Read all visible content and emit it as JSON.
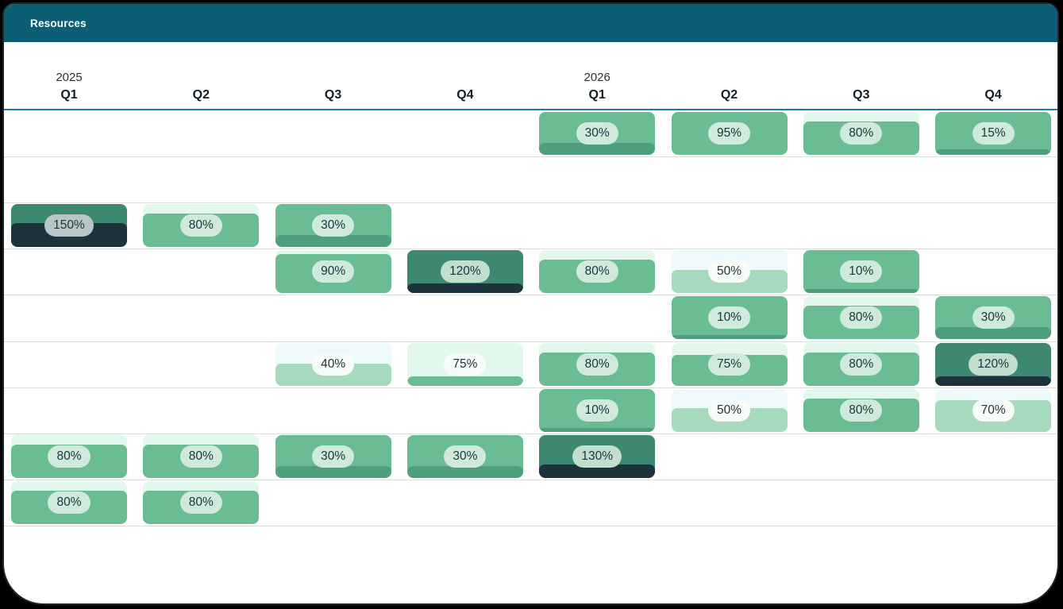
{
  "window": {
    "title": "Resources"
  },
  "colors": {
    "header_bg": "#0b5e74",
    "header_text": "#ffffff",
    "timeline_rule": "#1d7fa3",
    "row_line": "#dcdcde",
    "green": "#6abc92",
    "mint": "#e3f8ec",
    "pale": "#eef9fb",
    "light_green": "#a7dabd",
    "dark_green": "#3e8771",
    "navy": "#1d323c",
    "strip_green": "#4f9e7e",
    "pill_green": "#cfeadb",
    "pill_white": "#f7fcf9",
    "pill_over": "#c2decf",
    "pill_over_heavy": "#b9c6c5",
    "label_text": "#1c333b"
  },
  "timeline": {
    "years": [
      {
        "label": "2025",
        "col": 0
      },
      {
        "label": "2026",
        "col": 4
      }
    ],
    "quarters": [
      "Q1",
      "Q2",
      "Q3",
      "Q4",
      "Q1",
      "Q2",
      "Q3",
      "Q4"
    ]
  },
  "grid": {
    "row_count": 10,
    "col_count": 8,
    "cells": [
      {
        "row": 0,
        "col": 4,
        "label": "30%",
        "value": 30,
        "bg": "#6abc92",
        "fill_color": "#4f9e7e",
        "fill_pct": 28,
        "pill_bg": "#cfeadb"
      },
      {
        "row": 0,
        "col": 5,
        "label": "95%",
        "value": 95,
        "bg": "#e3f8ec",
        "fill_color": "#6abc92",
        "fill_pct": 100,
        "pill_bg": "#cfeadb"
      },
      {
        "row": 0,
        "col": 6,
        "label": "80%",
        "value": 80,
        "bg": "#e3f8ec",
        "fill_color": "#6abc92",
        "fill_pct": 77,
        "pill_bg": "#cfeadb"
      },
      {
        "row": 0,
        "col": 7,
        "label": "15%",
        "value": 15,
        "bg": "#6abc92",
        "fill_color": "#4f9e7e",
        "fill_pct": 13,
        "pill_bg": "#cfeadb"
      },
      {
        "row": 2,
        "col": 0,
        "label": "150%",
        "value": 150,
        "bg": "#3e8771",
        "fill_color": "#1d323c",
        "fill_pct": 55,
        "pill_bg": "#b9c6c5"
      },
      {
        "row": 2,
        "col": 1,
        "label": "80%",
        "value": 80,
        "bg": "#e3f8ec",
        "fill_color": "#6abc92",
        "fill_pct": 78,
        "pill_bg": "#cfeadb"
      },
      {
        "row": 2,
        "col": 2,
        "label": "30%",
        "value": 30,
        "bg": "#6abc92",
        "fill_color": "#4f9e7e",
        "fill_pct": 28,
        "pill_bg": "#cfeadb"
      },
      {
        "row": 3,
        "col": 2,
        "label": "90%",
        "value": 90,
        "bg": "#e3f8ec",
        "fill_color": "#6abc92",
        "fill_pct": 90,
        "pill_bg": "#cfeadb"
      },
      {
        "row": 3,
        "col": 3,
        "label": "120%",
        "value": 120,
        "bg": "#3e8771",
        "fill_color": "#1d323c",
        "fill_pct": 22,
        "pill_bg": "#c2decf"
      },
      {
        "row": 3,
        "col": 4,
        "label": "80%",
        "value": 80,
        "bg": "#e3f8ec",
        "fill_color": "#6abc92",
        "fill_pct": 78,
        "pill_bg": "#cfeadb"
      },
      {
        "row": 3,
        "col": 5,
        "label": "50%",
        "value": 50,
        "bg": "#eef9fb",
        "fill_color": "#a7dabd",
        "fill_pct": 53,
        "pill_bg": "#f7fcf9"
      },
      {
        "row": 3,
        "col": 6,
        "label": "10%",
        "value": 10,
        "bg": "#6abc92",
        "fill_color": "#4f9e7e",
        "fill_pct": 10,
        "pill_bg": "#cfeadb"
      },
      {
        "row": 4,
        "col": 5,
        "label": "10%",
        "value": 10,
        "bg": "#6abc92",
        "fill_color": "#4f9e7e",
        "fill_pct": 10,
        "pill_bg": "#cfeadb"
      },
      {
        "row": 4,
        "col": 6,
        "label": "80%",
        "value": 80,
        "bg": "#e3f8ec",
        "fill_color": "#6abc92",
        "fill_pct": 77,
        "pill_bg": "#cfeadb"
      },
      {
        "row": 4,
        "col": 7,
        "label": "30%",
        "value": 30,
        "bg": "#6abc92",
        "fill_color": "#4f9e7e",
        "fill_pct": 28,
        "pill_bg": "#cfeadb"
      },
      {
        "row": 5,
        "col": 2,
        "label": "40%",
        "value": 40,
        "bg": "#eef9fb",
        "fill_color": "#a7dabd",
        "fill_pct": 52,
        "pill_bg": "#f7fcf9"
      },
      {
        "row": 5,
        "col": 3,
        "label": "75%",
        "value": 75,
        "bg": "#e3f8ec",
        "fill_color": "#6abc92",
        "fill_pct": 22,
        "pill_bg": "#f7fcf9"
      },
      {
        "row": 5,
        "col": 4,
        "label": "80%",
        "value": 80,
        "bg": "#e3f8ec",
        "fill_color": "#6abc92",
        "fill_pct": 78,
        "pill_bg": "#cfeadb"
      },
      {
        "row": 5,
        "col": 5,
        "label": "75%",
        "value": 75,
        "bg": "#e3f8ec",
        "fill_color": "#6abc92",
        "fill_pct": 73,
        "pill_bg": "#cfeadb"
      },
      {
        "row": 5,
        "col": 6,
        "label": "80%",
        "value": 80,
        "bg": "#e3f8ec",
        "fill_color": "#6abc92",
        "fill_pct": 78,
        "pill_bg": "#cfeadb"
      },
      {
        "row": 5,
        "col": 7,
        "label": "120%",
        "value": 120,
        "bg": "#3e8771",
        "fill_color": "#1d323c",
        "fill_pct": 22,
        "pill_bg": "#c2decf"
      },
      {
        "row": 6,
        "col": 4,
        "label": "10%",
        "value": 10,
        "bg": "#6abc92",
        "fill_color": "#4f9e7e",
        "fill_pct": 10,
        "pill_bg": "#cfeadb"
      },
      {
        "row": 6,
        "col": 5,
        "label": "50%",
        "value": 50,
        "bg": "#eef9fb",
        "fill_color": "#a7dabd",
        "fill_pct": 55,
        "pill_bg": "#f7fcf9"
      },
      {
        "row": 6,
        "col": 6,
        "label": "80%",
        "value": 80,
        "bg": "#e3f8ec",
        "fill_color": "#6abc92",
        "fill_pct": 78,
        "pill_bg": "#cfeadb"
      },
      {
        "row": 6,
        "col": 7,
        "label": "70%",
        "value": 70,
        "bg": "#eef9fb",
        "fill_color": "#a7dabd",
        "fill_pct": 75,
        "pill_bg": "#f7fcf9"
      },
      {
        "row": 7,
        "col": 0,
        "label": "80%",
        "value": 80,
        "bg": "#e3f8ec",
        "fill_color": "#6abc92",
        "fill_pct": 78,
        "pill_bg": "#cfeadb"
      },
      {
        "row": 7,
        "col": 1,
        "label": "80%",
        "value": 80,
        "bg": "#e3f8ec",
        "fill_color": "#6abc92",
        "fill_pct": 78,
        "pill_bg": "#cfeadb"
      },
      {
        "row": 7,
        "col": 2,
        "label": "30%",
        "value": 30,
        "bg": "#6abc92",
        "fill_color": "#4f9e7e",
        "fill_pct": 28,
        "pill_bg": "#cfeadb"
      },
      {
        "row": 7,
        "col": 3,
        "label": "30%",
        "value": 30,
        "bg": "#6abc92",
        "fill_color": "#4f9e7e",
        "fill_pct": 28,
        "pill_bg": "#cfeadb"
      },
      {
        "row": 7,
        "col": 4,
        "label": "130%",
        "value": 130,
        "bg": "#3e8771",
        "fill_color": "#1d323c",
        "fill_pct": 31,
        "pill_bg": "#c2decf"
      },
      {
        "row": 8,
        "col": 0,
        "label": "80%",
        "value": 80,
        "bg": "#e3f8ec",
        "fill_color": "#6abc92",
        "fill_pct": 78,
        "pill_bg": "#cfeadb"
      },
      {
        "row": 8,
        "col": 1,
        "label": "80%",
        "value": 80,
        "bg": "#e3f8ec",
        "fill_color": "#6abc92",
        "fill_pct": 78,
        "pill_bg": "#cfeadb"
      }
    ]
  }
}
